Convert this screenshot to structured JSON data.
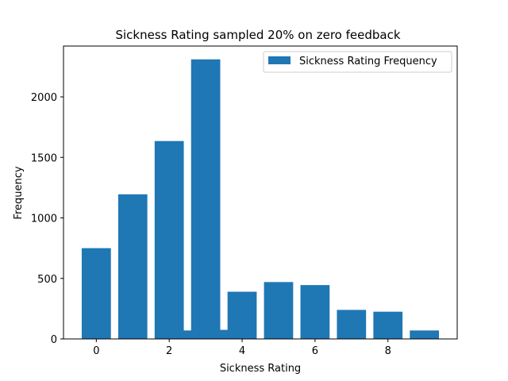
{
  "chart_data": {
    "type": "bar",
    "title": "Sickness Rating sampled 20% on zero feedback",
    "xlabel": "Sickness Rating",
    "ylabel": "Frequency",
    "xlim": [
      -0.9,
      9.9
    ],
    "ylim": [
      0,
      2420
    ],
    "xticks": [
      0,
      2,
      4,
      6,
      8
    ],
    "yticks": [
      0,
      500,
      1000,
      1500,
      2000
    ],
    "grid": false,
    "legend_position": "upper right",
    "bar_width": 0.8,
    "series": [
      {
        "name": "Sickness Rating Frequency",
        "color": "#1f77b4",
        "x": [
          0,
          1,
          2,
          2.5,
          3,
          3.5,
          4,
          5,
          6,
          7,
          8,
          9
        ],
        "values": [
          750,
          1195,
          1635,
          70,
          2310,
          75,
          390,
          470,
          445,
          240,
          225,
          70
        ]
      }
    ]
  }
}
